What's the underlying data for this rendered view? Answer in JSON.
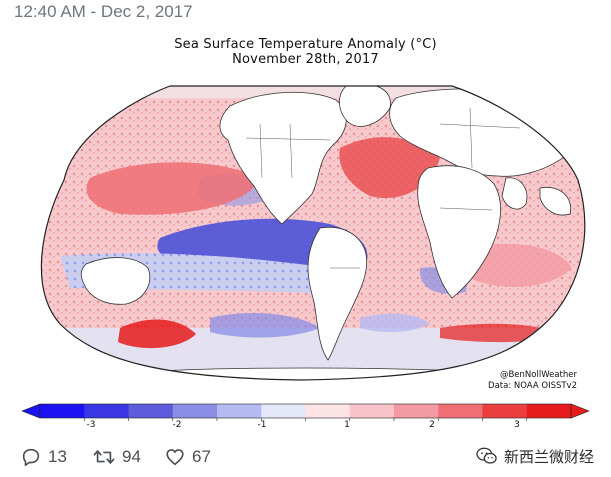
{
  "tweet": {
    "timestamp": "12:40 AM - Dec 2, 2017"
  },
  "figure": {
    "title_line1": "Sea Surface Temperature Anomaly (°C)",
    "title_line2": "November 28th, 2017",
    "credit_line1": "@BenNollWeather",
    "credit_line2": "Data: NOAA OISSTv2",
    "colorbar": {
      "tick_labels": [
        "-3",
        "-2",
        "-1",
        "1",
        "2",
        "3"
      ],
      "colors": [
        "#1a12f0",
        "#3a36e6",
        "#5c5cdc",
        "#8a8ee6",
        "#b6baf2",
        "#e4e6fa",
        "#fbe3e6",
        "#f9c3c9",
        "#f49aa2",
        "#ef6f74",
        "#ea3e3f",
        "#e61b1b"
      ]
    }
  },
  "actions": {
    "replies": "13",
    "retweets": "94",
    "likes": "67",
    "reply_icon": "reply-icon",
    "retweet_icon": "retweet-icon",
    "like_icon": "heart-icon"
  },
  "watermark": {
    "text": "新西兰微财经",
    "icon": "wechat-icon"
  }
}
